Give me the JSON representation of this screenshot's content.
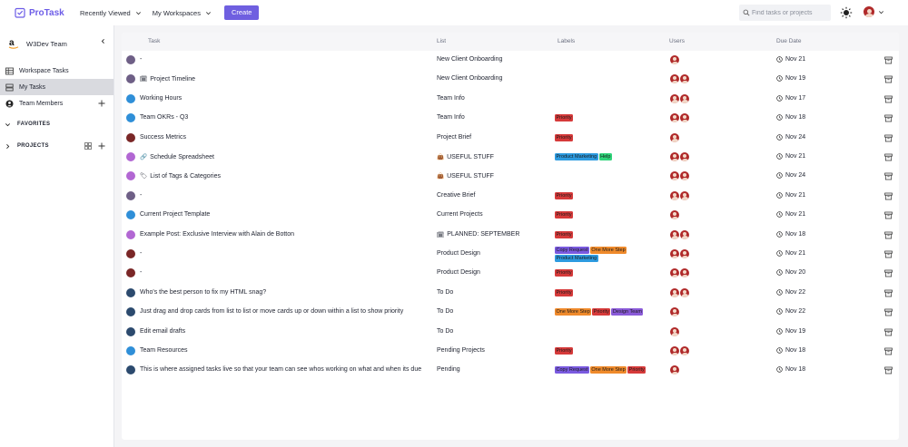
{
  "app": {
    "name": "ProTask",
    "brand_color": "#6c5ce7"
  },
  "topbar": {
    "nav": [
      {
        "label": "Recently Viewed"
      },
      {
        "label": "My Workspaces"
      }
    ],
    "create_label": "Create",
    "search_placeholder": "Find tasks or projects"
  },
  "sidebar": {
    "team_name": "W3Dev Team",
    "items": [
      {
        "label": "Workspace Tasks",
        "icon": "table-icon"
      },
      {
        "label": "My Tasks",
        "icon": "stack-icon",
        "active": true
      },
      {
        "label": "Team Members",
        "icon": "person-icon"
      }
    ],
    "sections": [
      {
        "label": "FAVORITES"
      },
      {
        "label": "PROJECTS"
      }
    ]
  },
  "table": {
    "headers": {
      "task": "Task",
      "list": "List",
      "labels": "Labels",
      "users": "Users",
      "due": "Due Date"
    },
    "rows": [
      {
        "dot": "#6e5f86",
        "icon": "",
        "task": "-",
        "list_icon": "",
        "list": "New Client Onboarding",
        "labels": [],
        "users": 1,
        "due": "Nov 21"
      },
      {
        "dot": "#6e5f86",
        "icon": "🗓",
        "task": "Project Timeline",
        "list_icon": "",
        "list": "New Client Onboarding",
        "labels": [],
        "users": 2,
        "due": "Nov 19"
      },
      {
        "dot": "#2f8fd8",
        "icon": "",
        "task": "Working Hours",
        "list_icon": "",
        "list": "Team Info",
        "labels": [],
        "users": 2,
        "due": "Nov 17"
      },
      {
        "dot": "#2f8fd8",
        "icon": "",
        "task": "Team OKRs - Q3",
        "list_icon": "",
        "list": "Team Info",
        "labels": [
          "Priority"
        ],
        "users": 2,
        "due": "Nov 18"
      },
      {
        "dot": "#7a2727",
        "icon": "",
        "task": "Success Metrics",
        "list_icon": "",
        "list": "Project Brief",
        "labels": [
          "Priority"
        ],
        "users": 1,
        "due": "Nov 24"
      },
      {
        "dot": "#b267d3",
        "icon": "🔗",
        "task": "Schedule Spreadsheet",
        "list_icon": "👜",
        "list": "USEFUL STUFF",
        "labels": [
          "Product Marketing",
          "Help"
        ],
        "users": 2,
        "due": "Nov 21"
      },
      {
        "dot": "#b267d3",
        "icon": "🏷",
        "task": "List of Tags & Categories",
        "list_icon": "👜",
        "list": "USEFUL STUFF",
        "labels": [],
        "users": 2,
        "due": "Nov 24"
      },
      {
        "dot": "#6e5f86",
        "icon": "",
        "task": "-",
        "list_icon": "",
        "list": "Creative Brief",
        "labels": [
          "Priority"
        ],
        "users": 2,
        "due": "Nov 21"
      },
      {
        "dot": "#2f8fd8",
        "icon": "",
        "task": "Current Project Template",
        "list_icon": "",
        "list": "Current Projects",
        "labels": [
          "Priority"
        ],
        "users": 1,
        "due": "Nov 21"
      },
      {
        "dot": "#b267d3",
        "icon": "",
        "task": "Example Post: Exclusive Interview with Alain de Botton",
        "list_icon": "🗓",
        "list": "PLANNED: SEPTEMBER",
        "labels": [
          "Priority"
        ],
        "users": 2,
        "due": "Nov 18"
      },
      {
        "dot": "#7a2727",
        "icon": "",
        "task": "-",
        "list_icon": "",
        "list": "Product Design",
        "labels": [
          "Copy Request",
          "One More Step",
          "Product Marketing"
        ],
        "users": 2,
        "due": "Nov 21"
      },
      {
        "dot": "#7a2727",
        "icon": "",
        "task": "-",
        "list_icon": "",
        "list": "Product Design",
        "labels": [
          "Priority"
        ],
        "users": 2,
        "due": "Nov 20"
      },
      {
        "dot": "#2c4a6e",
        "icon": "",
        "task": "Who's the best person to fix my HTML snag?",
        "list_icon": "",
        "list": "To Do",
        "labels": [
          "Priority"
        ],
        "users": 2,
        "due": "Nov 22"
      },
      {
        "dot": "#2c4a6e",
        "icon": "",
        "task": "Just drag and drop cards from list to list or move cards up or down within a list to show priority",
        "list_icon": "",
        "list": "To Do",
        "labels": [
          "One More Step",
          "Priority",
          "Design Team"
        ],
        "users": 1,
        "due": "Nov 22"
      },
      {
        "dot": "#2c4a6e",
        "icon": "",
        "task": "Edit email drafts",
        "list_icon": "",
        "list": "To Do",
        "labels": [],
        "users": 1,
        "due": "Nov 19"
      },
      {
        "dot": "#2f8fd8",
        "icon": "",
        "task": "Team Resources",
        "list_icon": "",
        "list": "Pending Projects",
        "labels": [
          "Priority"
        ],
        "users": 2,
        "due": "Nov 18"
      },
      {
        "dot": "#2c4a6e",
        "icon": "",
        "task": "This is where assigned tasks live so that your team can see whos working on what and when its due",
        "list_icon": "",
        "list": "Pending",
        "labels": [
          "Copy Request",
          "One More Step",
          "Priority"
        ],
        "users": 1,
        "due": "Nov 18"
      }
    ]
  },
  "label_colors": {
    "Priority": "#d63a3a",
    "Product Marketing": "#2d9be0",
    "Help": "#2fd47a",
    "Copy Request": "#7a5ae0",
    "One More Step": "#ef8a2b",
    "Design Team": "#8a5ad8"
  }
}
